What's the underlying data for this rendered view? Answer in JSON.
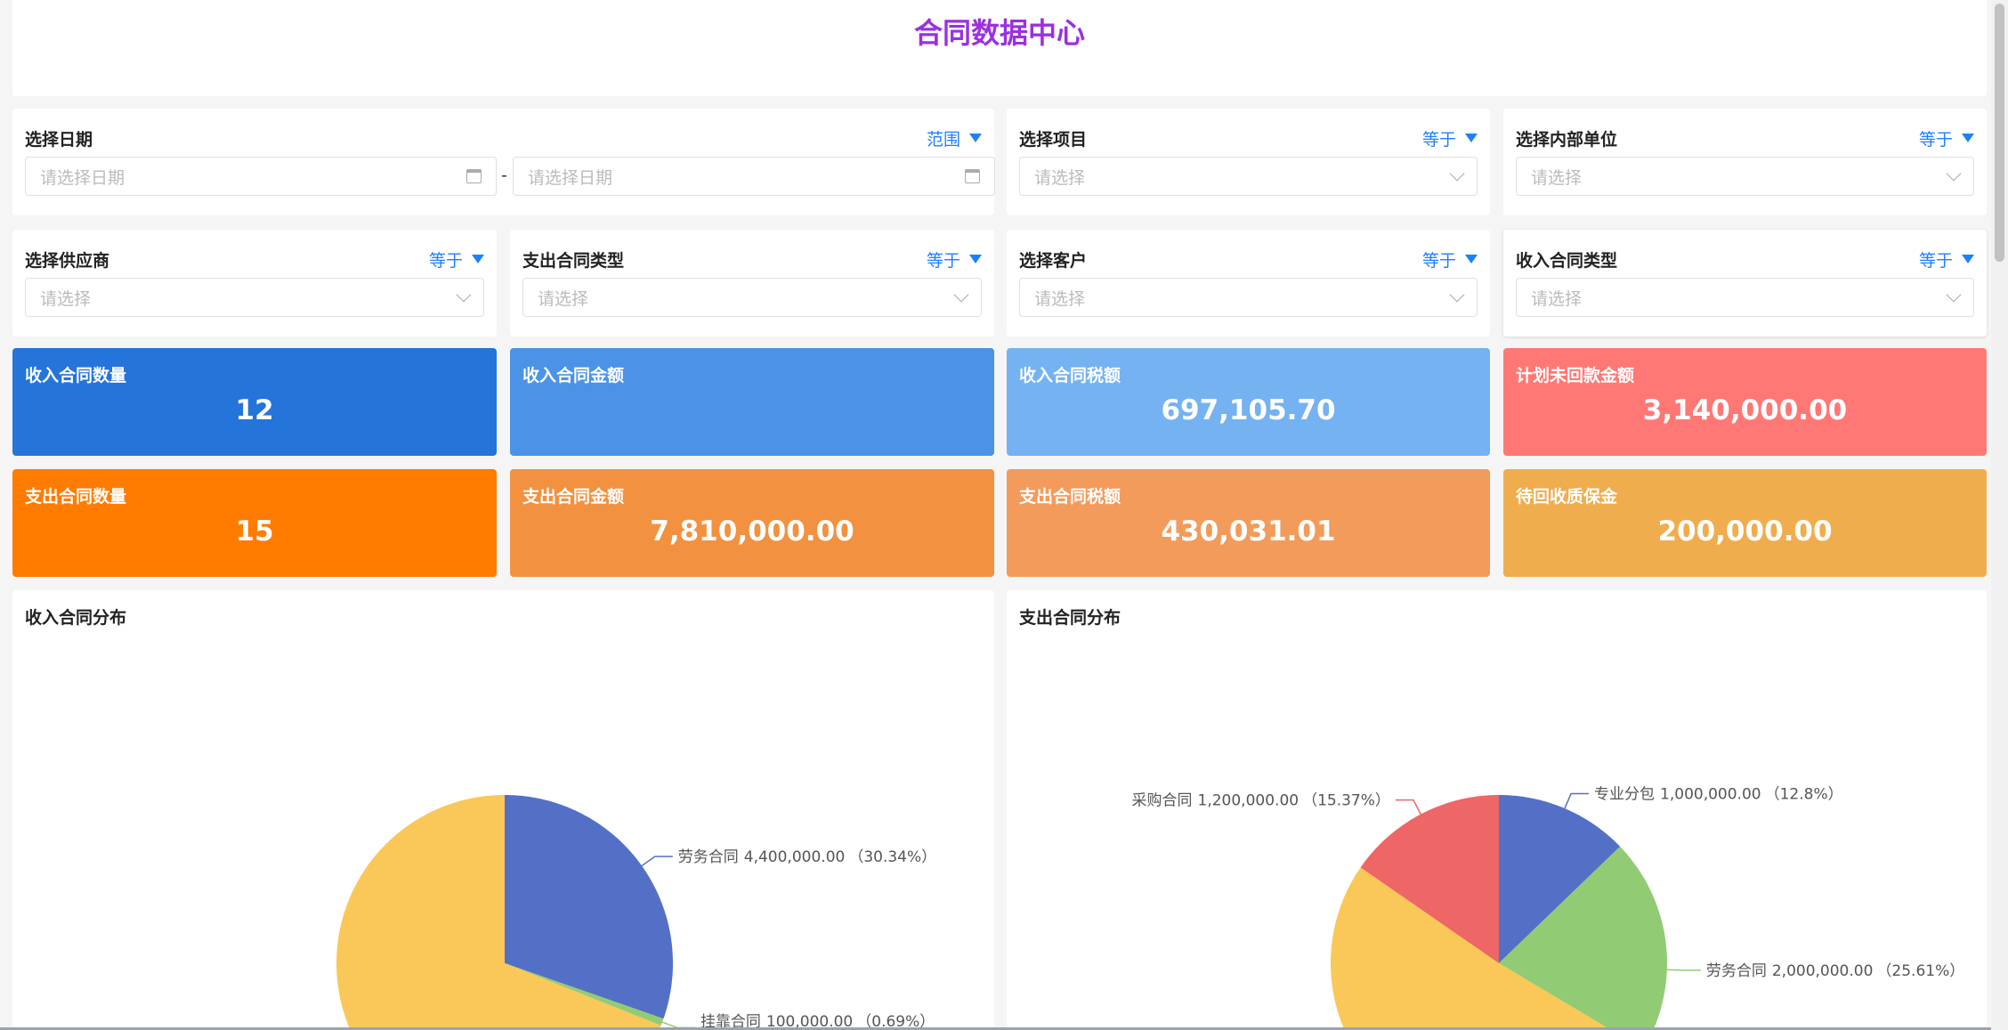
{
  "header": {
    "title": "合同数据中心"
  },
  "filters": [
    {
      "label": "选择日期",
      "operator": "范围",
      "type": "date-range",
      "start_placeholder": "请选择日期",
      "end_placeholder": "请选择日期",
      "separator": "-"
    },
    {
      "label": "选择项目",
      "operator": "等于",
      "placeholder": "请选择"
    },
    {
      "label": "选择内部单位",
      "operator": "等于",
      "placeholder": "请选择"
    },
    {
      "label": "选择供应商",
      "operator": "等于",
      "placeholder": "请选择"
    },
    {
      "label": "支出合同类型",
      "operator": "等于",
      "placeholder": "请选择"
    },
    {
      "label": "选择客户",
      "operator": "等于",
      "placeholder": "请选择"
    },
    {
      "label": "收入合同类型",
      "operator": "等于",
      "placeholder": "请选择"
    }
  ],
  "stats": [
    {
      "label": "收入合同数量",
      "value": "12",
      "color": "#2574d9"
    },
    {
      "label": "收入合同金额",
      "value": "",
      "color": "#4a93e6"
    },
    {
      "label": "收入合同税额",
      "value": "697,105.70",
      "color": "#74b2f2"
    },
    {
      "label": "计划未回款金额",
      "value": "3,140,000.00",
      "color": "#ff7875"
    },
    {
      "label": "支出合同数量",
      "value": "15",
      "color": "#ff7c00"
    },
    {
      "label": "支出合同金额",
      "value": "7,810,000.00",
      "color": "#f29140"
    },
    {
      "label": "支出合同税额",
      "value": "430,031.01",
      "color": "#f39b5b"
    },
    {
      "label": "待回收质保金",
      "value": "200,000.00",
      "color": "#f0ad4e"
    }
  ],
  "chart_data": [
    {
      "type": "pie",
      "title": "收入合同分布",
      "slices": [
        {
          "name": "劳务合同",
          "value": 4400000,
          "value_label": "4,400,000.00",
          "percent": "30.34%",
          "color": "#5470c6",
          "show_label": true
        },
        {
          "name": "挂靠合同",
          "value": 100000,
          "value_label": "100,000.00",
          "percent": "0.69%",
          "color": "#91cc75",
          "show_label": true
        },
        {
          "value": 10000000,
          "color": "#fac858",
          "show_label": false
        }
      ]
    },
    {
      "type": "pie",
      "title": "支出合同分布",
      "slices": [
        {
          "name": "专业分包",
          "value": 1000000,
          "value_label": "1,000,000.00",
          "percent": "12.8%",
          "color": "#5470c6",
          "show_label": true
        },
        {
          "name": "劳务合同",
          "value": 2000000,
          "value_label": "2,000,000.00",
          "percent": "25.61%",
          "color": "#91cc75",
          "show_label": true
        },
        {
          "value": 3610000,
          "color": "#fac858",
          "show_label": false
        },
        {
          "name": "采购合同",
          "value": 1200000,
          "value_label": "1,200,000.00",
          "percent": "15.37%",
          "color": "#ee6666",
          "show_label": true
        }
      ]
    }
  ]
}
